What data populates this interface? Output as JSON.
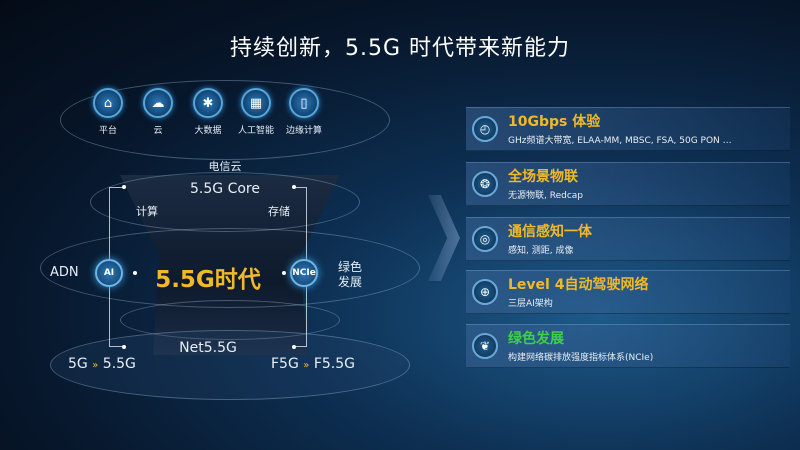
{
  "title": "持续创新，5.5G 时代带来新能力",
  "top_icons": [
    {
      "label": "平台",
      "icon": "platform-icon"
    },
    {
      "label": "云",
      "icon": "cloud-icon"
    },
    {
      "label": "大数据",
      "icon": "big-data-icon"
    },
    {
      "label": "人工智能",
      "icon": "ai-chip-icon"
    },
    {
      "label": "边缘计算",
      "icon": "edge-computing-icon"
    }
  ],
  "diagram": {
    "telecom_cloud": "电信云",
    "core": "5.5G Core",
    "compute": "计算",
    "storage": "存储",
    "center": "5.5G时代",
    "left_label": "ADN",
    "left_node": "AI",
    "right_node": "NCIe",
    "right_label_1": "绿色",
    "right_label_2": "发展",
    "net": "Net5.5G",
    "bottom_left_from": "5G",
    "bottom_left_to": "5.5G",
    "bottom_right_from": "F5G",
    "bottom_right_to": "F5.5G",
    "arrow_glyph": "»"
  },
  "cards": [
    {
      "title": "10Gbps 体验",
      "subtitle": "GHz频谱大带宽, ELAA-MM, MBSC, FSA, 50G PON …",
      "icon": "speed-gauge-icon",
      "color": "#f0b929"
    },
    {
      "title": "全场景物联",
      "subtitle": "无源物联, Redcap",
      "icon": "iot-network-icon",
      "color": "#f0b929"
    },
    {
      "title": "通信感知一体",
      "subtitle": "感知, 测距, 成像",
      "icon": "sensing-icon",
      "color": "#f0b929"
    },
    {
      "title": "Level 4自动驾驶网络",
      "subtitle": "三层AI架构",
      "icon": "globe-network-icon",
      "color": "#f0b929"
    },
    {
      "title": "绿色发展",
      "subtitle": "构建网络碳排放强度指标体系(NCIe)",
      "icon": "leaf-icon",
      "color": "#3fd04a"
    }
  ],
  "colors": {
    "accent": "#f0b929",
    "green": "#3fd04a"
  }
}
